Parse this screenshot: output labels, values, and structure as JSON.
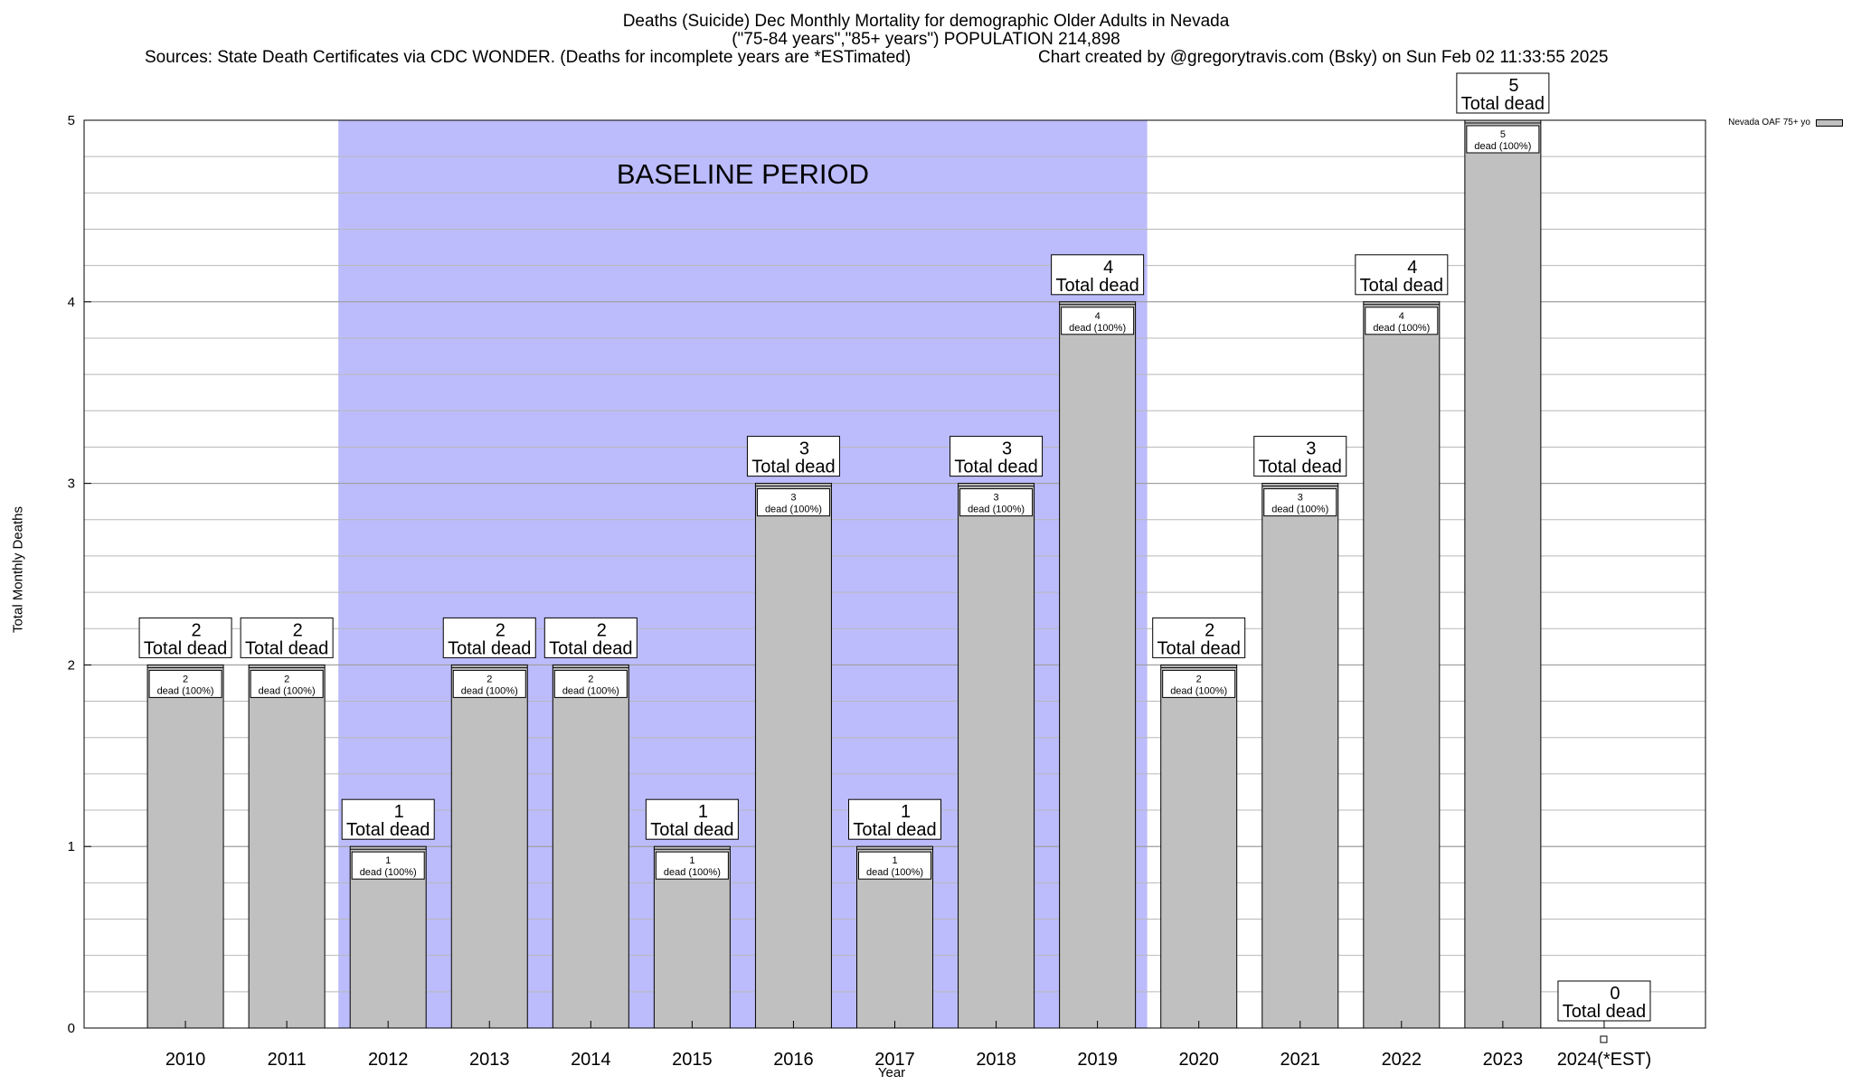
{
  "title_lines": [
    "Deaths (Suicide) Dec Monthly Mortality for demographic Older Adults in Nevada",
    "(\"75-84 years\",\"85+ years\") POPULATION 214,898"
  ],
  "source_left": "Sources: State Death Certificates via CDC WONDER. (Deaths for incomplete years are *ESTimated)",
  "source_right": "Chart created by @gregorytravis.com (Bsky) on Sun Feb 02 11:33:55 2025",
  "legend_label": "Nevada OAF 75+ yo",
  "chart_data": {
    "type": "bar",
    "categories": [
      "2010",
      "2011",
      "2012",
      "2013",
      "2014",
      "2015",
      "2016",
      "2017",
      "2018",
      "2019",
      "2020",
      "2021",
      "2022",
      "2023",
      "2024(*EST)"
    ],
    "series": [
      {
        "name": "Nevada OAF 75+ yo",
        "values": [
          2,
          2,
          1,
          2,
          2,
          1,
          3,
          1,
          3,
          4,
          2,
          3,
          4,
          5,
          0
        ]
      }
    ],
    "xlabel": "Year",
    "ylabel": "Total Monthly Deaths",
    "ylim": [
      0,
      5
    ],
    "yticks": [
      0,
      1,
      2,
      3,
      4,
      5
    ],
    "grid": true,
    "legend_position": "top-right",
    "bar_color": "#c0c0c0",
    "baseline": {
      "label": "BASELINE PERIOD",
      "from": "2012",
      "to": "2019",
      "color": "#bcbcfc"
    },
    "total_label_suffix": "Total dead",
    "inner_label_suffix": "dead (100%)"
  }
}
